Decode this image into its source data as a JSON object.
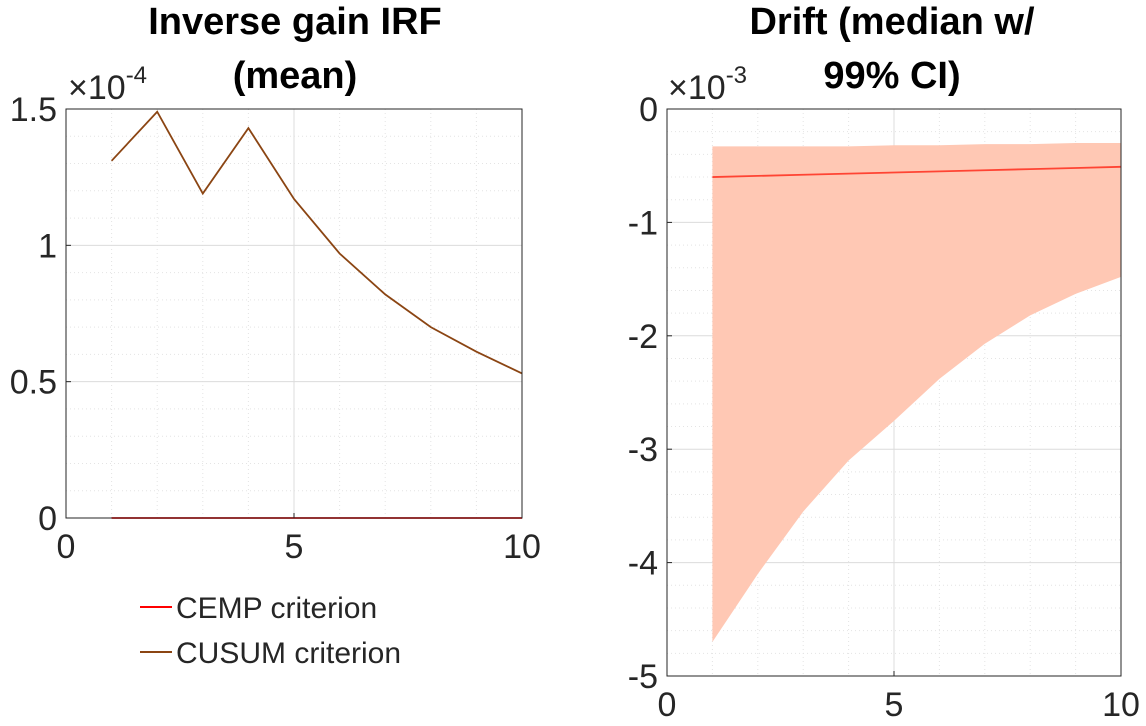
{
  "chart_data": [
    {
      "type": "line",
      "title": [
        "Inverse gain IRF",
        "(mean)"
      ],
      "xlim": [
        0,
        10
      ],
      "ylim": [
        0,
        1.5
      ],
      "xticks": [
        0,
        5,
        10
      ],
      "yticks": [
        0,
        0.5,
        1,
        1.5
      ],
      "xtick_labels": [
        "0",
        "5",
        "10"
      ],
      "ytick_labels": [
        "0",
        "0.5",
        "1",
        "1.5"
      ],
      "multiplier": {
        "base": "×10",
        "exponent": "-4"
      },
      "grid": "major and minor",
      "legend_position": "below",
      "x": [
        1,
        2,
        3,
        4,
        5,
        6,
        7,
        8,
        9,
        10
      ],
      "series": [
        {
          "name": "CEMP criterion",
          "color": "#ff0000",
          "values": [
            0,
            0,
            0,
            0,
            0,
            0,
            0,
            0,
            0,
            0
          ]
        },
        {
          "name": "CUSUM criterion",
          "color": "#8b4513",
          "values": [
            1.31,
            1.49,
            1.19,
            1.43,
            1.17,
            0.97,
            0.82,
            0.7,
            0.61,
            0.53
          ]
        }
      ]
    },
    {
      "type": "area",
      "title": [
        "Drift (median w/",
        "99% CI)"
      ],
      "xlim": [
        0,
        10
      ],
      "ylim": [
        -5,
        0
      ],
      "xticks": [
        0,
        5,
        10
      ],
      "yticks": [
        0,
        -1,
        -2,
        -3,
        -4,
        -5
      ],
      "xtick_labels": [
        "0",
        "5",
        "10"
      ],
      "ytick_labels": [
        "0",
        "-1",
        "-2",
        "-3",
        "-4",
        "-5"
      ],
      "multiplier": {
        "base": "×10",
        "exponent": "-3"
      },
      "grid": "major and minor",
      "x": [
        1,
        2,
        3,
        4,
        5,
        6,
        7,
        8,
        9,
        10
      ],
      "band": {
        "color": "#ffc8b4",
        "upper": [
          -0.33,
          -0.33,
          -0.33,
          -0.33,
          -0.32,
          -0.32,
          -0.31,
          -0.31,
          -0.3,
          -0.3
        ],
        "lower": [
          -4.7,
          -4.1,
          -3.55,
          -3.1,
          -2.75,
          -2.38,
          -2.07,
          -1.82,
          -1.63,
          -1.48
        ]
      },
      "series": [
        {
          "color": "#ff4433",
          "values": [
            -0.6,
            -0.59,
            -0.58,
            -0.57,
            -0.56,
            -0.55,
            -0.54,
            -0.53,
            -0.52,
            -0.51
          ]
        }
      ]
    }
  ]
}
